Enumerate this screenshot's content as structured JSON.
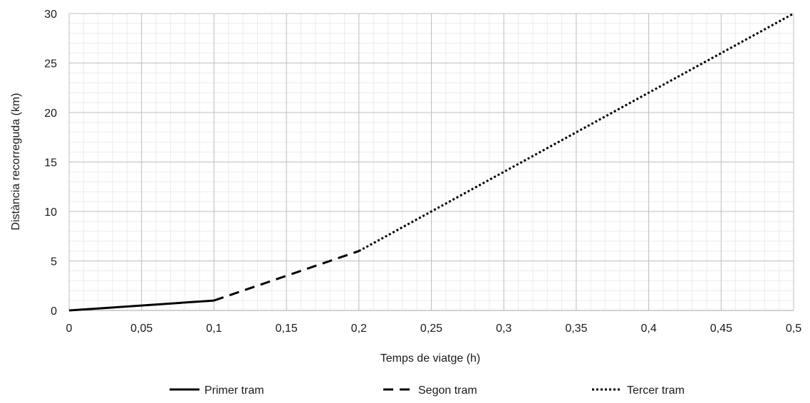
{
  "chart_data": {
    "type": "line",
    "title": "",
    "xlabel": "Temps de viatge (h)",
    "ylabel": "Distància recorreguda (km)",
    "xlim": [
      0,
      0.5
    ],
    "ylim": [
      0,
      30
    ],
    "x_ticks": [
      0,
      0.05,
      0.1,
      0.15,
      0.2,
      0.25,
      0.3,
      0.35,
      0.4,
      0.45,
      0.5
    ],
    "x_tick_labels": [
      "0",
      "0,05",
      "0,1",
      "0,15",
      "0,2",
      "0,25",
      "0,3",
      "0,35",
      "0,4",
      "0,45",
      "0,5"
    ],
    "y_ticks": [
      0,
      5,
      10,
      15,
      20,
      25,
      30
    ],
    "y_tick_labels": [
      "0",
      "5",
      "10",
      "15",
      "20",
      "25",
      "30"
    ],
    "grid": true,
    "minor_grid": true,
    "legend_position": "bottom",
    "series": [
      {
        "name": "Primer tram",
        "style": "solid",
        "color": "#000000",
        "x": [
          0,
          0.1
        ],
        "y": [
          0,
          1
        ]
      },
      {
        "name": "Segon tram",
        "style": "dashed",
        "color": "#000000",
        "x": [
          0.1,
          0.2
        ],
        "y": [
          1,
          6
        ]
      },
      {
        "name": "Tercer tram",
        "style": "dotted",
        "color": "#000000",
        "x": [
          0.2,
          0.5
        ],
        "y": [
          6,
          30
        ]
      }
    ]
  }
}
